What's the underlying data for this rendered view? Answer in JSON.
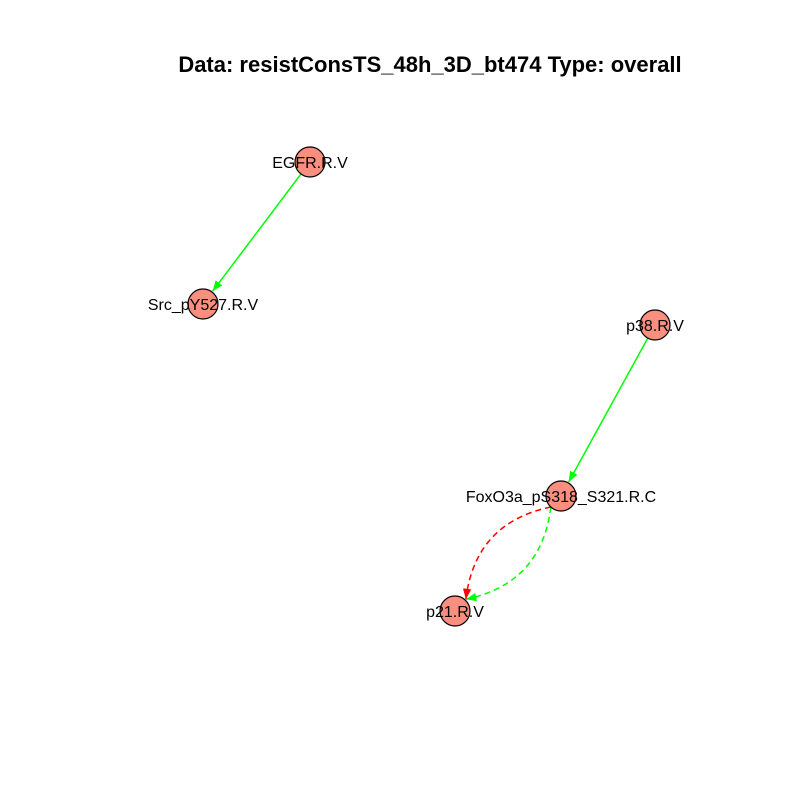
{
  "title": "Data: resistConsTS_48h_3D_bt474 Type: overall",
  "colors": {
    "node_fill": "#fa8f80",
    "node_stroke": "#000000",
    "activation": "#00ff00",
    "inhibition": "#ff0000"
  },
  "nodes": [
    {
      "id": "egfr",
      "label": "EGFR.R.V"
    },
    {
      "id": "src",
      "label": "Src_pY527.R.V"
    },
    {
      "id": "p38",
      "label": "p38.R.V"
    },
    {
      "id": "foxo3a",
      "label": "FoxO3a_pS318_S321.R.C"
    },
    {
      "id": "p21",
      "label": "p21.R.V"
    }
  ],
  "edges": [
    {
      "from": "egfr",
      "to": "src",
      "color": "activation",
      "style": "solid"
    },
    {
      "from": "p38",
      "to": "foxo3a",
      "color": "activation",
      "style": "solid"
    },
    {
      "from": "foxo3a",
      "to": "p21",
      "color": "activation",
      "style": "dashed"
    },
    {
      "from": "foxo3a",
      "to": "p21",
      "color": "inhibition",
      "style": "dashed"
    }
  ]
}
